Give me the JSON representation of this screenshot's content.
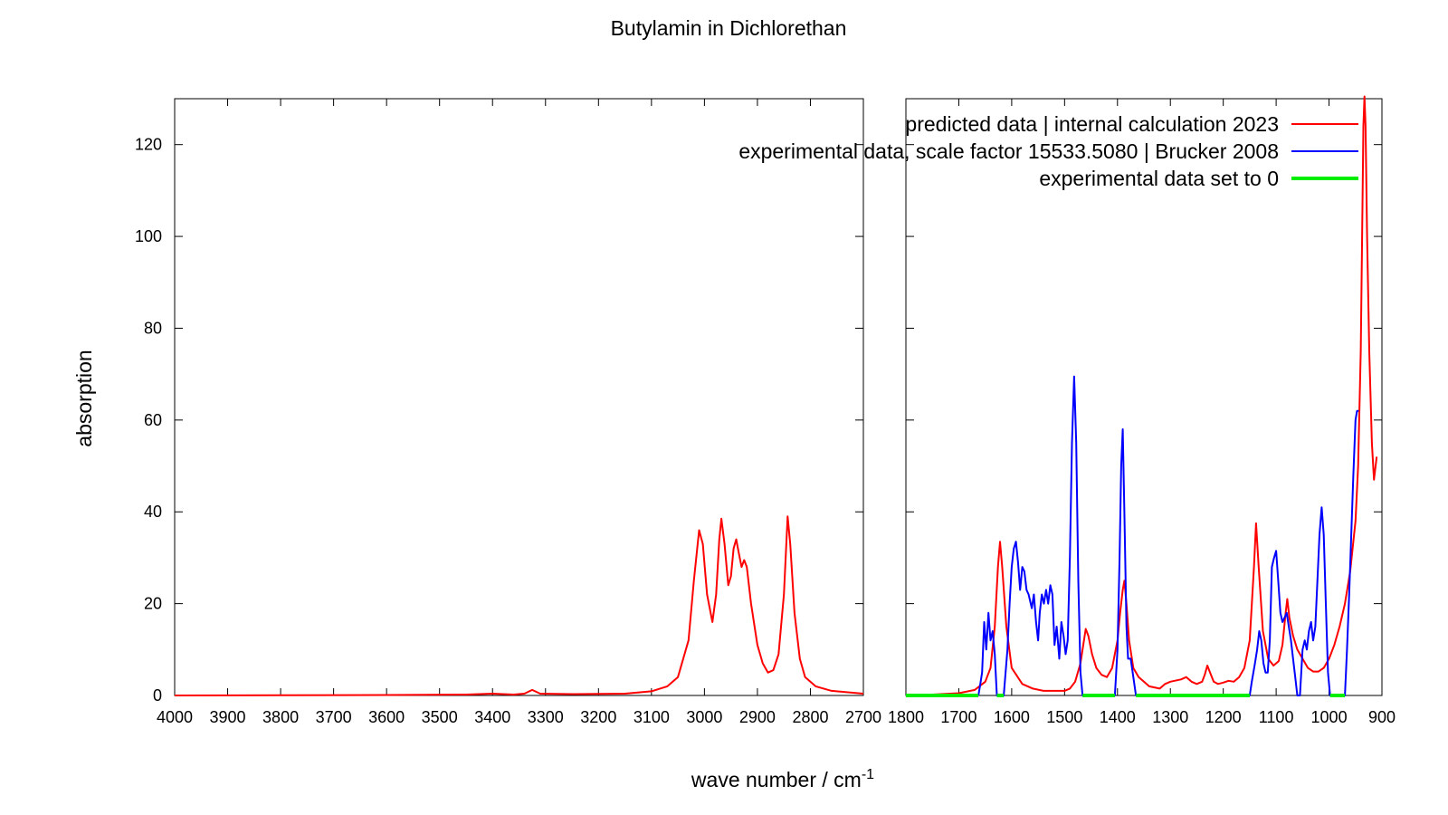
{
  "chart_data": {
    "type": "line",
    "title": "Butylamin in Dichlorethan",
    "xlabel": "wave number / cm",
    "xlabel_sup": "-1",
    "ylabel": "absorption",
    "ylim": [
      0,
      130
    ],
    "yticks": [
      0,
      20,
      40,
      60,
      80,
      100,
      120
    ],
    "grid": false,
    "legend_placement": "top-right",
    "panels": [
      {
        "name": "left",
        "xlim": [
          4000,
          2700
        ],
        "xticks": [
          4000,
          3900,
          3800,
          3700,
          3600,
          3500,
          3400,
          3300,
          3200,
          3100,
          3000,
          2900,
          2800,
          2700
        ]
      },
      {
        "name": "right",
        "xlim": [
          1800,
          900
        ],
        "xticks": [
          1800,
          1700,
          1600,
          1500,
          1400,
          1300,
          1200,
          1100,
          1000,
          900
        ]
      }
    ],
    "series": [
      {
        "name": "predicted data | internal calculation 2023",
        "color": "#ff0000",
        "panel_points": [
          [
            [
              4000,
              0
            ],
            [
              3800,
              0.05
            ],
            [
              3600,
              0.1
            ],
            [
              3450,
              0.2
            ],
            [
              3400,
              0.4
            ],
            [
              3360,
              0.2
            ],
            [
              3340,
              0.4
            ],
            [
              3325,
              1.2
            ],
            [
              3310,
              0.4
            ],
            [
              3250,
              0.3
            ],
            [
              3150,
              0.4
            ],
            [
              3100,
              0.9
            ],
            [
              3070,
              2
            ],
            [
              3050,
              4
            ],
            [
              3030,
              12
            ],
            [
              3020,
              25
            ],
            [
              3010,
              36
            ],
            [
              3003,
              33
            ],
            [
              2995,
              22
            ],
            [
              2985,
              16
            ],
            [
              2978,
              22
            ],
            [
              2972,
              34
            ],
            [
              2968,
              38.5
            ],
            [
              2962,
              33
            ],
            [
              2955,
              24
            ],
            [
              2950,
              26
            ],
            [
              2945,
              32
            ],
            [
              2940,
              34
            ],
            [
              2935,
              31
            ],
            [
              2930,
              28
            ],
            [
              2925,
              29.5
            ],
            [
              2920,
              28
            ],
            [
              2912,
              20
            ],
            [
              2900,
              11
            ],
            [
              2890,
              7
            ],
            [
              2880,
              5
            ],
            [
              2870,
              5.5
            ],
            [
              2860,
              9
            ],
            [
              2850,
              22
            ],
            [
              2843,
              39
            ],
            [
              2838,
              33
            ],
            [
              2830,
              18
            ],
            [
              2820,
              8
            ],
            [
              2810,
              4
            ],
            [
              2790,
              2
            ],
            [
              2760,
              1
            ],
            [
              2700,
              0.4
            ]
          ],
          [
            [
              1800,
              0
            ],
            [
              1750,
              0.2
            ],
            [
              1700,
              0.5
            ],
            [
              1670,
              1.2
            ],
            [
              1650,
              3
            ],
            [
              1640,
              6
            ],
            [
              1632,
              15
            ],
            [
              1626,
              28
            ],
            [
              1622,
              33.5
            ],
            [
              1618,
              28
            ],
            [
              1610,
              15
            ],
            [
              1600,
              6
            ],
            [
              1580,
              2.5
            ],
            [
              1560,
              1.5
            ],
            [
              1540,
              1
            ],
            [
              1500,
              1
            ],
            [
              1490,
              1.5
            ],
            [
              1480,
              3
            ],
            [
              1470,
              7
            ],
            [
              1460,
              14.5
            ],
            [
              1455,
              13
            ],
            [
              1448,
              9
            ],
            [
              1440,
              6
            ],
            [
              1430,
              4.5
            ],
            [
              1420,
              4
            ],
            [
              1410,
              6
            ],
            [
              1400,
              12
            ],
            [
              1395,
              18
            ],
            [
              1390,
              23
            ],
            [
              1387,
              25
            ],
            [
              1383,
              20
            ],
            [
              1378,
              12
            ],
            [
              1370,
              6
            ],
            [
              1360,
              4
            ],
            [
              1350,
              3
            ],
            [
              1340,
              2
            ],
            [
              1320,
              1.5
            ],
            [
              1310,
              2.5
            ],
            [
              1300,
              3
            ],
            [
              1280,
              3.5
            ],
            [
              1270,
              4
            ],
            [
              1260,
              3
            ],
            [
              1250,
              2.5
            ],
            [
              1240,
              3
            ],
            [
              1235,
              4.5
            ],
            [
              1230,
              6.5
            ],
            [
              1225,
              5
            ],
            [
              1218,
              3
            ],
            [
              1210,
              2.5
            ],
            [
              1200,
              2.8
            ],
            [
              1190,
              3.2
            ],
            [
              1180,
              3
            ],
            [
              1170,
              4
            ],
            [
              1160,
              6
            ],
            [
              1150,
              12
            ],
            [
              1142,
              28
            ],
            [
              1138,
              37.5
            ],
            [
              1133,
              28
            ],
            [
              1125,
              14
            ],
            [
              1115,
              8
            ],
            [
              1105,
              6.5
            ],
            [
              1095,
              7.5
            ],
            [
              1088,
              11
            ],
            [
              1082,
              18
            ],
            [
              1079,
              21
            ],
            [
              1075,
              17
            ],
            [
              1068,
              13
            ],
            [
              1060,
              10
            ],
            [
              1050,
              8
            ],
            [
              1040,
              6
            ],
            [
              1030,
              5.2
            ],
            [
              1020,
              5.2
            ],
            [
              1010,
              6
            ],
            [
              1000,
              8
            ],
            [
              990,
              11
            ],
            [
              980,
              15
            ],
            [
              970,
              20
            ],
            [
              960,
              27
            ],
            [
              950,
              38
            ],
            [
              945,
              50
            ],
            [
              940,
              75
            ],
            [
              937,
              105
            ],
            [
              935,
              124
            ],
            [
              933,
              130.5
            ],
            [
              931,
              124
            ],
            [
              928,
              100
            ],
            [
              924,
              75
            ],
            [
              919,
              55
            ],
            [
              915,
              47
            ],
            [
              910,
              52
            ]
          ]
        ]
      },
      {
        "name": "experimental data, scale factor 15533.5080 | Brucker 2008",
        "color": "#0000ff",
        "panel_points": [
          [],
          [
            [
              1663,
              0
            ],
            [
              1660,
              2
            ],
            [
              1656,
              5
            ],
            [
              1652,
              16
            ],
            [
              1648,
              10
            ],
            [
              1644,
              18
            ],
            [
              1640,
              12
            ],
            [
              1636,
              14
            ],
            [
              1632,
              9
            ],
            [
              1628,
              0
            ],
            [
              1615,
              0
            ],
            [
              1608,
              10
            ],
            [
              1604,
              20
            ],
            [
              1600,
              28
            ],
            [
              1596,
              32
            ],
            [
              1592,
              33.5
            ],
            [
              1588,
              29
            ],
            [
              1584,
              23
            ],
            [
              1580,
              28
            ],
            [
              1576,
              27
            ],
            [
              1572,
              23
            ],
            [
              1568,
              22
            ],
            [
              1562,
              19
            ],
            [
              1558,
              22
            ],
            [
              1554,
              16
            ],
            [
              1550,
              12
            ],
            [
              1547,
              18
            ],
            [
              1543,
              22
            ],
            [
              1539,
              20
            ],
            [
              1535,
              23
            ],
            [
              1531,
              20
            ],
            [
              1527,
              24
            ],
            [
              1523,
              22
            ],
            [
              1519,
              11
            ],
            [
              1515,
              15
            ],
            [
              1510,
              8
            ],
            [
              1506,
              16
            ],
            [
              1502,
              13
            ],
            [
              1498,
              9
            ],
            [
              1494,
              12
            ],
            [
              1490,
              30
            ],
            [
              1486,
              55
            ],
            [
              1482,
              69.5
            ],
            [
              1478,
              55
            ],
            [
              1474,
              25
            ],
            [
              1470,
              5
            ],
            [
              1466,
              0
            ],
            [
              1405,
              0
            ],
            [
              1400,
              10
            ],
            [
              1396,
              30
            ],
            [
              1393,
              50
            ],
            [
              1390,
              58
            ],
            [
              1387,
              40
            ],
            [
              1383,
              15
            ],
            [
              1380,
              8
            ],
            [
              1375,
              8
            ],
            [
              1370,
              4
            ],
            [
              1365,
              0
            ],
            [
              1150,
              0
            ],
            [
              1146,
              3
            ],
            [
              1140,
              7
            ],
            [
              1136,
              10
            ],
            [
              1132,
              14
            ],
            [
              1128,
              12
            ],
            [
              1124,
              7
            ],
            [
              1120,
              5
            ],
            [
              1116,
              5
            ],
            [
              1112,
              12
            ],
            [
              1108,
              28
            ],
            [
              1104,
              30
            ],
            [
              1100,
              31.5
            ],
            [
              1096,
              25
            ],
            [
              1092,
              18
            ],
            [
              1088,
              16
            ],
            [
              1084,
              17
            ],
            [
              1080,
              18
            ],
            [
              1076,
              15
            ],
            [
              1072,
              12
            ],
            [
              1068,
              8
            ],
            [
              1064,
              4
            ],
            [
              1060,
              0
            ],
            [
              1055,
              0
            ],
            [
              1050,
              10
            ],
            [
              1046,
              12
            ],
            [
              1042,
              10
            ],
            [
              1038,
              14
            ],
            [
              1034,
              16
            ],
            [
              1030,
              12
            ],
            [
              1026,
              15
            ],
            [
              1022,
              25
            ],
            [
              1018,
              35
            ],
            [
              1014,
              41
            ],
            [
              1010,
              35
            ],
            [
              1006,
              20
            ],
            [
              1002,
              5
            ],
            [
              998,
              0
            ],
            [
              970,
              0
            ],
            [
              966,
              10
            ],
            [
              962,
              22
            ],
            [
              958,
              35
            ],
            [
              954,
              48
            ],
            [
              950,
              60
            ],
            [
              947,
              62
            ],
            [
              944,
              62
            ]
          ]
        ]
      },
      {
        "name": "experimental data set to 0",
        "color": "#00ee00",
        "panel_segments": [
          [],
          [
            [
              1800,
              1663
            ],
            [
              1628,
              1615
            ],
            [
              1466,
              1405
            ],
            [
              1365,
              1150
            ],
            [
              998,
              970
            ]
          ]
        ]
      }
    ]
  }
}
